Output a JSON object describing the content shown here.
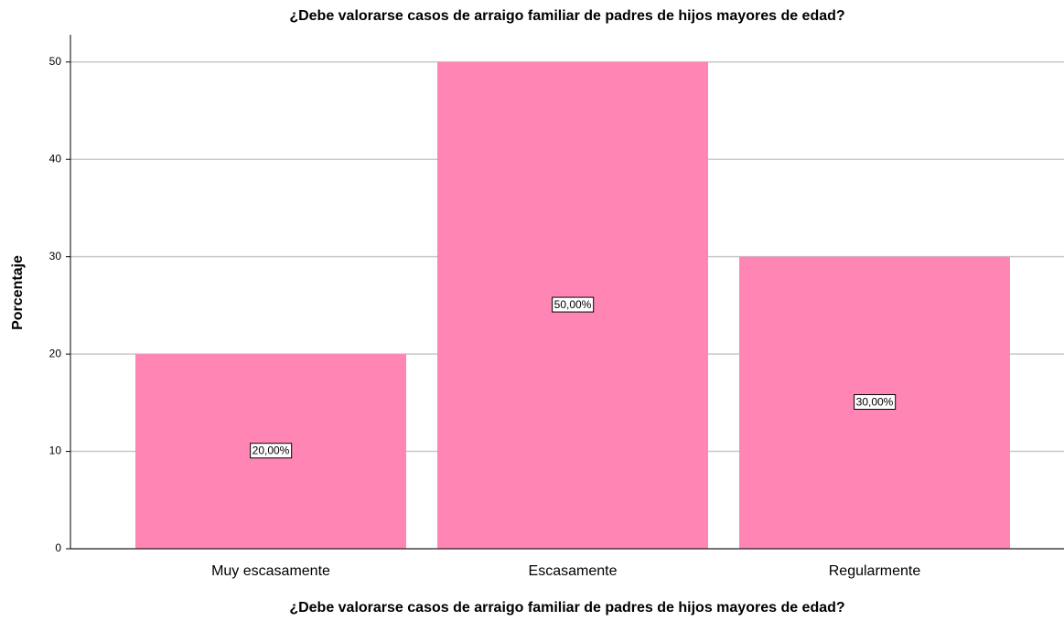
{
  "chart_data": {
    "type": "bar",
    "title": "¿Debe valorarse casos de arraigo familiar de padres de hijos mayores de edad?",
    "x_label": "¿Debe valorarse casos de arraigo familiar de padres de hijos mayores de edad?",
    "y_label": "Porcentaje",
    "categories": [
      "Muy escasamente",
      "Escasamente",
      "Regularmente"
    ],
    "values": [
      20,
      50,
      30
    ],
    "value_labels": [
      "20,00%",
      "50,00%",
      "30,00%"
    ],
    "color": "#ff85b4",
    "ylim": [
      0,
      52.8
    ],
    "yticks": [
      0,
      10,
      20,
      30,
      40,
      50
    ],
    "grid": true
  }
}
